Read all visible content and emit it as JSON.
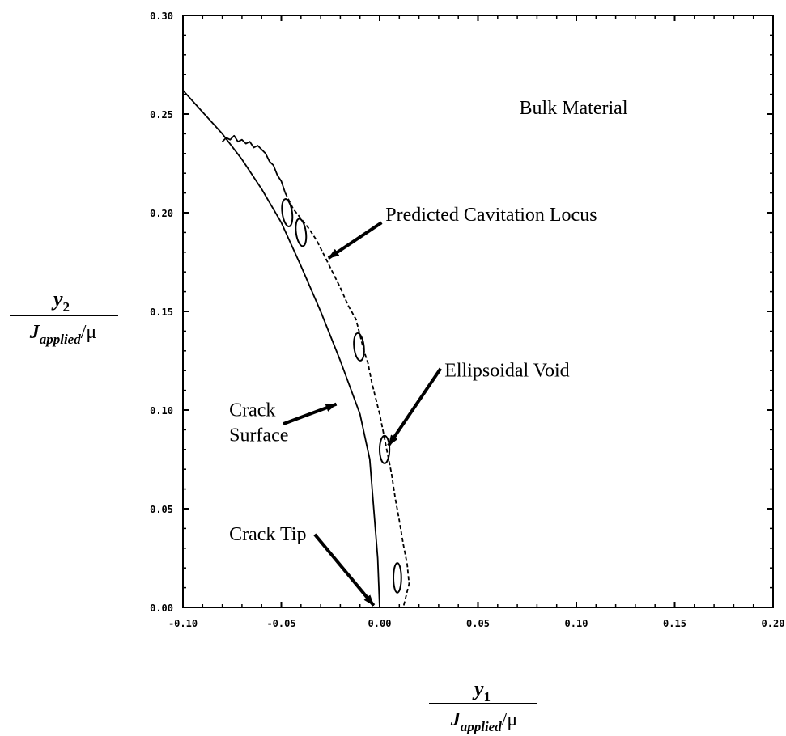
{
  "chart_data": {
    "type": "line",
    "xlim": [
      -0.1,
      0.2
    ],
    "ylim": [
      0.0,
      0.3
    ],
    "x_ticks": [
      -0.1,
      -0.05,
      0.0,
      0.05,
      0.1,
      0.15,
      0.2
    ],
    "y_ticks": [
      0.0,
      0.05,
      0.1,
      0.15,
      0.2,
      0.25,
      0.3
    ],
    "x_tick_labels": [
      "-0.10",
      "-0.05",
      "0.00",
      "0.05",
      "0.10",
      "0.15",
      "0.20"
    ],
    "y_tick_labels": [
      "0.00",
      "0.05",
      "0.10",
      "0.15",
      "0.20",
      "0.25",
      "0.30"
    ],
    "xlabel": {
      "numerator": "y",
      "numerator_sub": "1",
      "denominator": "J",
      "denominator_sub": "applied",
      "denominator_tail": "/μ"
    },
    "ylabel": {
      "numerator": "y",
      "numerator_sub": "2",
      "denominator": "J",
      "denominator_sub": "applied",
      "denominator_tail": "/μ"
    },
    "grid": false,
    "series": [
      {
        "style": "solid",
        "x": [
          -0.1,
          -0.09,
          -0.08,
          -0.07,
          -0.06,
          -0.05,
          -0.04,
          -0.03,
          -0.02,
          -0.01,
          -0.005,
          -0.001,
          0.0
        ],
        "y": [
          0.262,
          0.251,
          0.24,
          0.227,
          0.212,
          0.195,
          0.173,
          0.15,
          0.125,
          0.098,
          0.075,
          0.025,
          0.0
        ]
      },
      {
        "style": "solid",
        "x": [
          -0.08,
          -0.078,
          -0.076,
          -0.074,
          -0.072,
          -0.07,
          -0.068,
          -0.066,
          -0.064,
          -0.062,
          -0.06,
          -0.058,
          -0.056,
          -0.054,
          -0.052,
          -0.05,
          -0.048
        ],
        "y": [
          0.236,
          0.238,
          0.237,
          0.239,
          0.236,
          0.237,
          0.235,
          0.236,
          0.233,
          0.234,
          0.232,
          0.23,
          0.226,
          0.224,
          0.219,
          0.216,
          0.21
        ]
      },
      {
        "style": "dashed",
        "x": [
          -0.048,
          -0.044,
          -0.04,
          -0.036,
          -0.032,
          -0.028,
          -0.024,
          -0.02,
          -0.016,
          -0.012,
          -0.01,
          -0.008,
          -0.006,
          -0.004,
          -0.002,
          0.0,
          0.002,
          0.004,
          0.006,
          0.008,
          0.01,
          0.012,
          0.014,
          0.015,
          0.013,
          0.012
        ],
        "y": [
          0.21,
          0.202,
          0.197,
          0.192,
          0.186,
          0.178,
          0.17,
          0.162,
          0.153,
          0.146,
          0.138,
          0.13,
          0.124,
          0.114,
          0.106,
          0.098,
          0.088,
          0.078,
          0.068,
          0.055,
          0.044,
          0.032,
          0.022,
          0.012,
          0.004,
          0.0
        ]
      }
    ],
    "voids": [
      {
        "x": -0.047,
        "y": 0.2,
        "rx": 0.0025,
        "ry": 0.007,
        "angle": -8
      },
      {
        "x": -0.04,
        "y": 0.19,
        "rx": 0.0025,
        "ry": 0.007,
        "angle": -8
      },
      {
        "x": -0.0105,
        "y": 0.132,
        "rx": 0.0025,
        "ry": 0.007,
        "angle": -6
      },
      {
        "x": 0.0025,
        "y": 0.08,
        "rx": 0.0025,
        "ry": 0.007,
        "angle": 0
      },
      {
        "x": 0.009,
        "y": 0.015,
        "rx": 0.002,
        "ry": 0.0075,
        "angle": 0
      }
    ],
    "annotations": [
      {
        "lines": [
          "Bulk Material"
        ],
        "x": 0.071,
        "y": 0.25,
        "arrow": null
      },
      {
        "lines": [
          "Predicted Cavitation Locus"
        ],
        "x": 0.003,
        "y": 0.196,
        "arrow": {
          "x1": 0.001,
          "y1": 0.195,
          "x2": -0.026,
          "y2": 0.177
        }
      },
      {
        "lines": [
          "Ellipsoidal Void"
        ],
        "x": 0.033,
        "y": 0.117,
        "arrow": {
          "x1": 0.031,
          "y1": 0.121,
          "x2": 0.0045,
          "y2": 0.082
        }
      },
      {
        "lines": [
          "Crack",
          "Surface"
        ],
        "x": -0.0765,
        "y": 0.097,
        "arrow": {
          "x1": -0.049,
          "y1": 0.093,
          "x2": -0.022,
          "y2": 0.103
        }
      },
      {
        "lines": [
          "Crack Tip"
        ],
        "x": -0.0765,
        "y": 0.034,
        "arrow": {
          "x1": -0.033,
          "y1": 0.037,
          "x2": -0.003,
          "y2": 0.001
        }
      }
    ]
  }
}
